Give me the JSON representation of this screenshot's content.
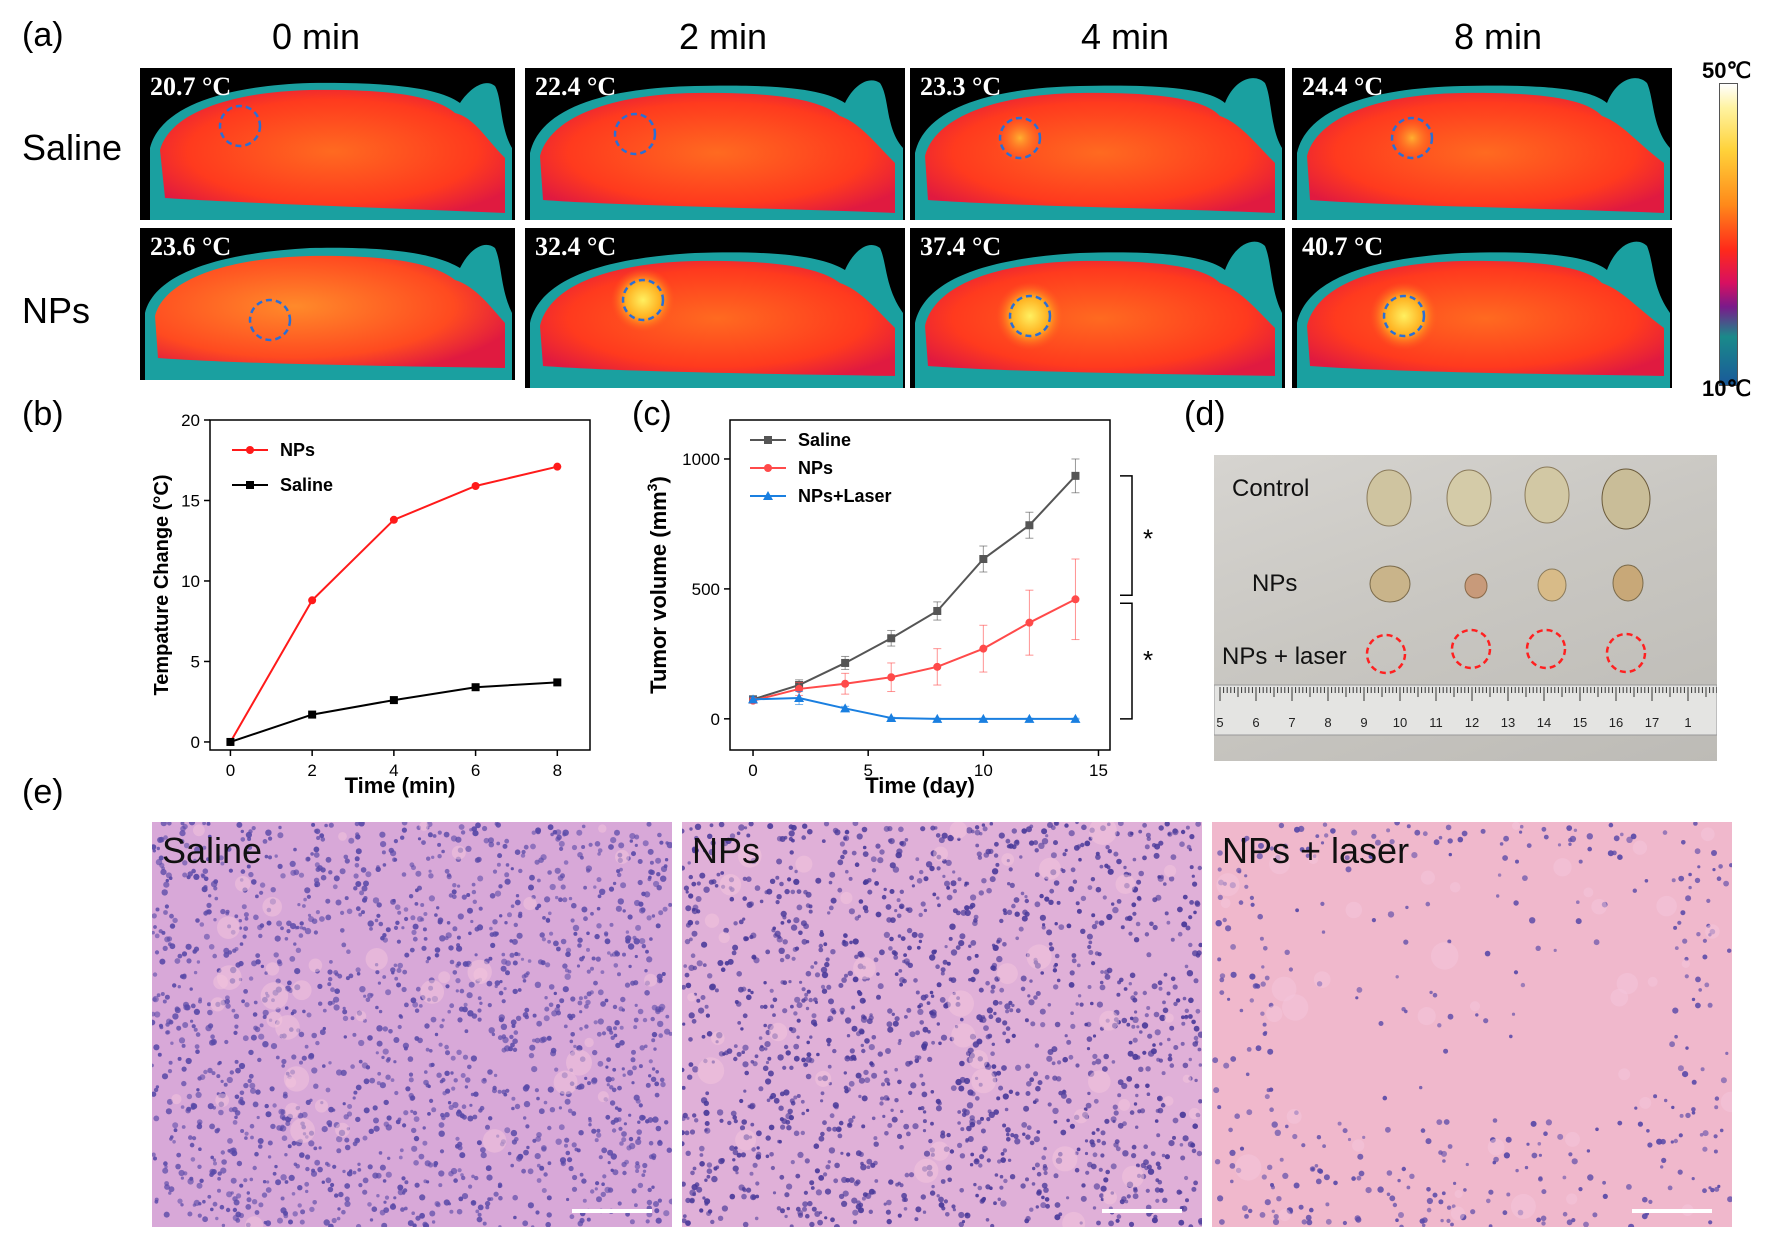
{
  "panels": {
    "a": "(a)",
    "b": "(b)",
    "c": "(c)",
    "d": "(d)",
    "e": "(e)"
  },
  "panel_a": {
    "time_labels": [
      "0 min",
      "2 min",
      "4 min",
      "8 min"
    ],
    "row_labels": [
      "Saline",
      "NPs"
    ],
    "saline_temps": [
      "20.7 °C",
      "22.4 °C",
      "23.3 °C",
      "24.4 °C"
    ],
    "nps_temps": [
      "23.6 °C",
      "32.4 °C",
      "37.4 °C",
      "40.7 °C"
    ],
    "colorbar": {
      "max": "50℃",
      "min": "10℃"
    },
    "colors": {
      "body": "#ff3a1e",
      "edge": "#1aa0a0",
      "ring": "#2a6fd6"
    }
  },
  "chart_data": [
    {
      "type": "line",
      "panel": "b",
      "xlabel": "Time (min)",
      "ylabel": "Tempature Change (°C)",
      "xlim": [
        -0.5,
        8.8
      ],
      "ylim": [
        -0.5,
        20
      ],
      "xticks": [
        0,
        2,
        4,
        6,
        8
      ],
      "yticks": [
        0,
        5,
        10,
        15,
        20
      ],
      "x": [
        0,
        2,
        4,
        6,
        8
      ],
      "series": [
        {
          "name": "NPs",
          "color": "#ff1a1a",
          "marker": "circle",
          "values": [
            0,
            8.8,
            13.8,
            15.9,
            17.1
          ]
        },
        {
          "name": "Saline",
          "color": "#000000",
          "marker": "square",
          "values": [
            0,
            1.7,
            2.6,
            3.4,
            3.7
          ]
        }
      ]
    },
    {
      "type": "line",
      "panel": "c",
      "xlabel": "Time (day)",
      "ylabel": "Tumor volume (mm",
      "ylabel_sup": "3",
      "ylabel_end": ")",
      "xlim": [
        -1,
        15.5
      ],
      "ylim": [
        -120,
        1150
      ],
      "xticks": [
        0,
        5,
        10,
        15
      ],
      "yticks": [
        0,
        500,
        1000
      ],
      "x": [
        0,
        2,
        4,
        6,
        8,
        10,
        12,
        14
      ],
      "series": [
        {
          "name": "Saline",
          "color": "#555555",
          "marker": "square",
          "values": [
            75,
            130,
            215,
            310,
            415,
            615,
            745,
            935
          ],
          "errors": [
            10,
            20,
            25,
            30,
            35,
            50,
            50,
            65
          ]
        },
        {
          "name": "NPs",
          "color": "#ff4a4a",
          "marker": "circle",
          "values": [
            70,
            115,
            135,
            160,
            200,
            270,
            370,
            460
          ],
          "errors": [
            10,
            25,
            40,
            55,
            70,
            90,
            125,
            155
          ]
        },
        {
          "name": "NPs+Laser",
          "color": "#1a7fe0",
          "marker": "triangle",
          "values": [
            75,
            80,
            40,
            3,
            0,
            0,
            0,
            0
          ],
          "errors": [
            10,
            25,
            8,
            3,
            2,
            2,
            2,
            2
          ]
        }
      ],
      "significance": [
        "*",
        "*"
      ]
    }
  ],
  "panel_d": {
    "rows": [
      "Control",
      "NPs",
      "NPs + laser"
    ],
    "ruler_numbers": [
      "5",
      "6",
      "7",
      "8",
      "9",
      "10",
      "11",
      "12",
      "13",
      "14",
      "15",
      "16",
      "17",
      "1"
    ]
  },
  "panel_e": {
    "labels": [
      "Saline",
      "NPs",
      "NPs + laser"
    ]
  }
}
